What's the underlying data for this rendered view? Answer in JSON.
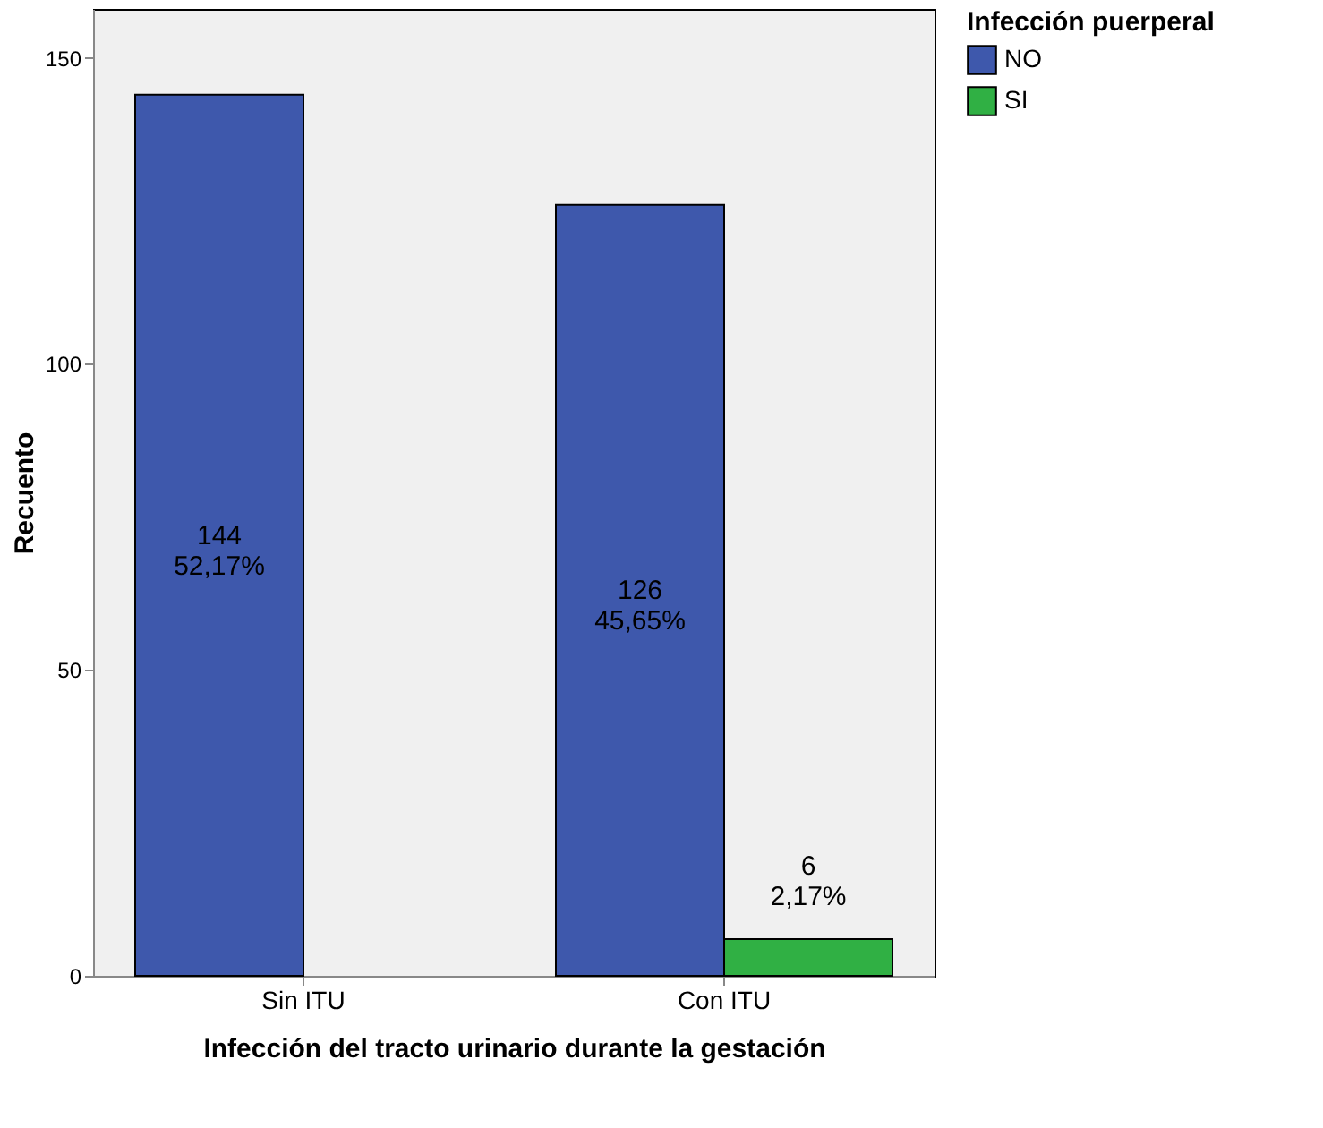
{
  "chart_data": {
    "type": "bar",
    "xlabel": "Infección del tracto urinario durante la gestación",
    "ylabel": "Recuento",
    "legend_title": "Infección puerperal",
    "categories": [
      "Sin ITU",
      "Con ITU"
    ],
    "series": [
      {
        "name": "NO",
        "color": "#3e58ac",
        "values": [
          144,
          126
        ],
        "value_labels": [
          "144\n52,17%",
          "126\n45,65%"
        ]
      },
      {
        "name": "SI",
        "color": "#30b044",
        "values": [
          null,
          6
        ],
        "value_labels": [
          null,
          "6\n2,17%"
        ]
      }
    ],
    "ylim": [
      0,
      158
    ],
    "yticks": [
      0,
      50,
      100,
      150
    ],
    "grid": false,
    "legend": "right"
  }
}
